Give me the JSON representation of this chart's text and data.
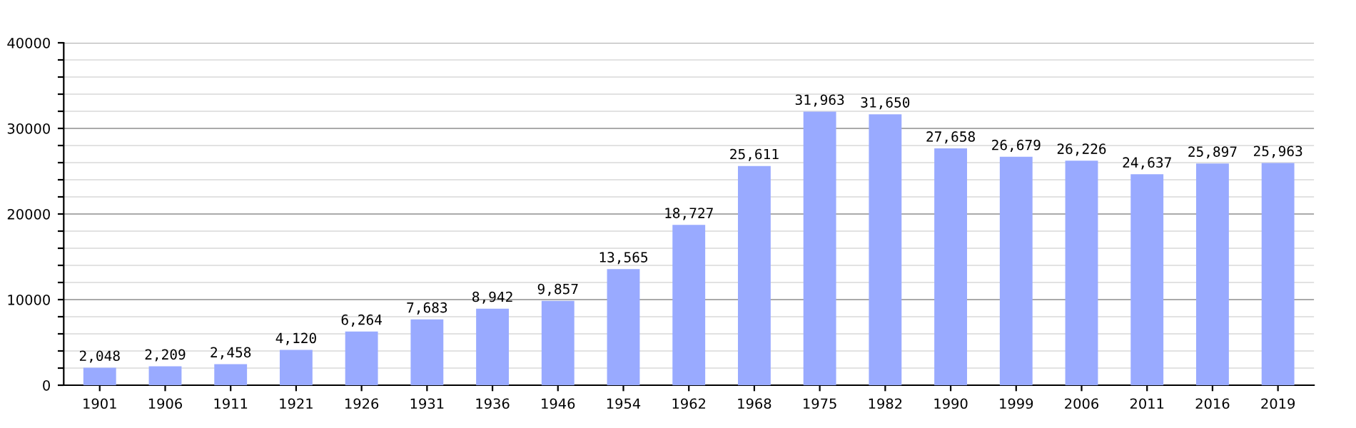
{
  "chart_data": {
    "type": "bar",
    "categories": [
      "1901",
      "1906",
      "1911",
      "1921",
      "1926",
      "1931",
      "1936",
      "1946",
      "1954",
      "1962",
      "1968",
      "1975",
      "1982",
      "1990",
      "1999",
      "2006",
      "2011",
      "2016",
      "2019"
    ],
    "values": [
      2048,
      2209,
      2458,
      4120,
      6264,
      7683,
      8942,
      9857,
      13565,
      18727,
      25611,
      31963,
      31650,
      27658,
      26679,
      26226,
      24637,
      25897,
      25963
    ],
    "value_labels": [
      "2,048",
      "2,209",
      "2,458",
      "4,120",
      "6,264",
      "7,683",
      "8,942",
      "9,857",
      "13,565",
      "18,727",
      "25,611",
      "31,963",
      "31,650",
      "27,658",
      "26,679",
      "26,226",
      "24,637",
      "25,897",
      "25,963"
    ],
    "color": "#99aaff",
    "ylim": [
      0,
      40000
    ],
    "yticks": [
      0,
      {
        "value": 2000,
        "label": null
      },
      {
        "value": 4000,
        "label": null
      },
      {
        "value": 6000,
        "label": null
      },
      {
        "value": 8000,
        "label": null
      },
      10000,
      {
        "value": 12000,
        "label": null
      },
      {
        "value": 14000,
        "label": null
      },
      {
        "value": 16000,
        "label": null
      },
      {
        "value": 18000,
        "label": null
      },
      20000,
      {
        "value": 22000,
        "label": null
      },
      {
        "value": 24000,
        "label": null
      },
      {
        "value": 26000,
        "label": null
      },
      {
        "value": 28000,
        "label": null
      },
      30000,
      {
        "value": 32000,
        "label": null
      },
      {
        "value": 34000,
        "label": null
      },
      {
        "value": 36000,
        "label": null
      },
      {
        "value": 38000,
        "label": null
      },
      40000
    ],
    "grid": "y"
  }
}
